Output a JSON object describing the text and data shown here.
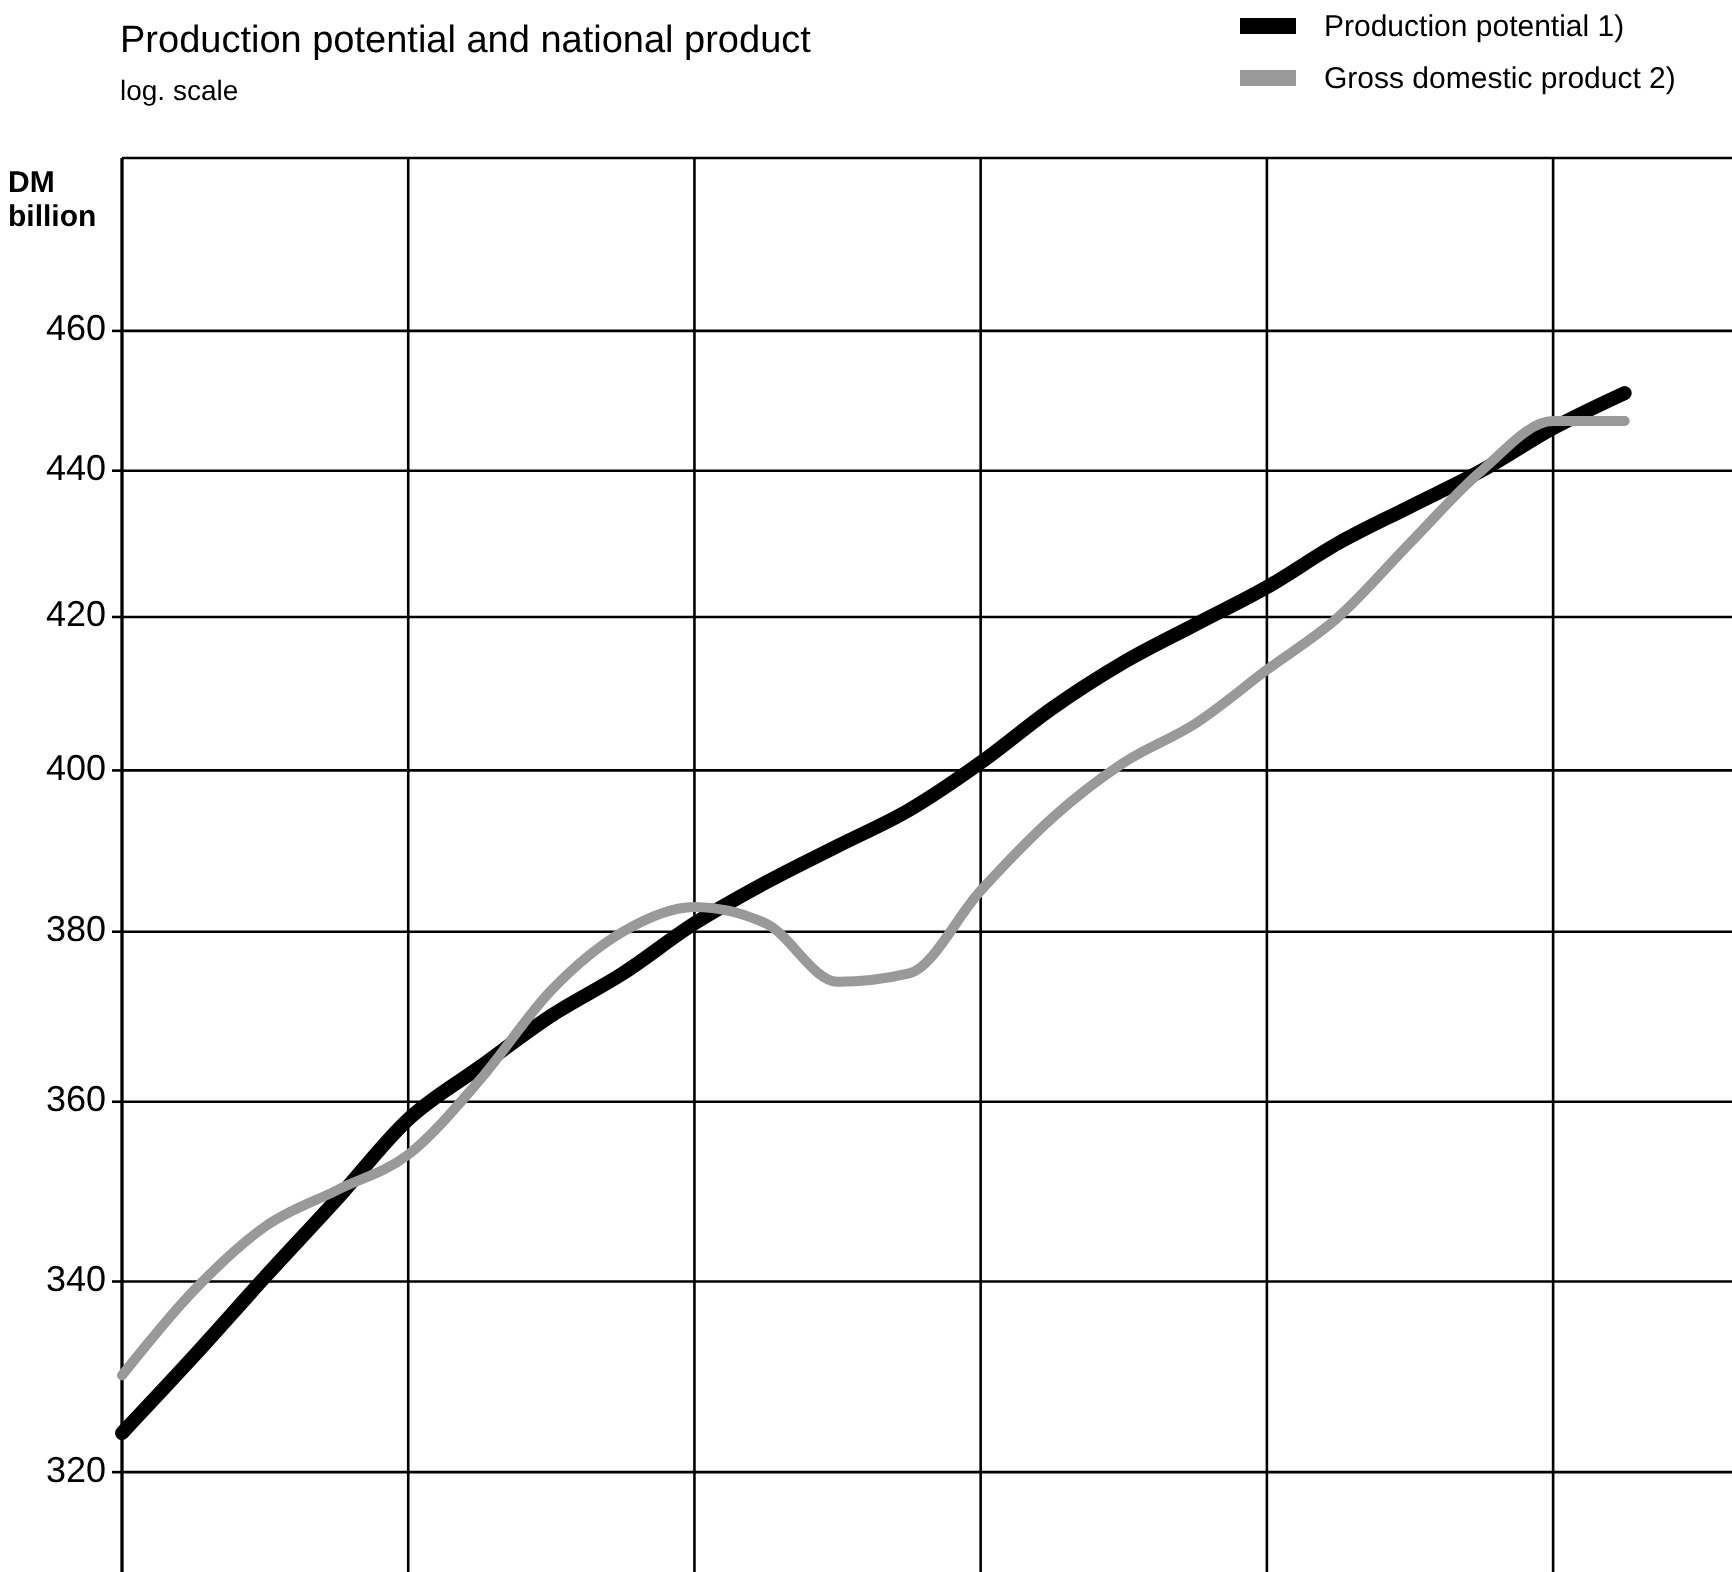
{
  "chart_data": {
    "type": "line",
    "title": "Production potential and national product",
    "subtitle": "log. scale",
    "ylabel": "DM billion",
    "log": true,
    "grid": true,
    "legend": "top right",
    "tick_labels": "y",
    "marker": "none",
    "line_style": "solid",
    "categories": [
      null,
      null,
      null,
      null,
      null,
      null,
      null,
      null,
      null,
      null,
      null,
      null,
      null,
      null,
      null,
      null,
      null,
      null,
      null,
      null,
      null,
      null
    ],
    "ylim": [
      310,
      486
    ],
    "yticks": [
      320,
      340,
      360,
      380,
      400,
      420,
      440,
      460
    ],
    "series": [
      {
        "name": "Production potential 1)",
        "color": "#000000",
        "values": [
          324,
          332,
          340.5,
          349,
          358,
          364,
          370,
          375,
          381,
          386,
          390.5,
          395,
          401,
          408,
          414,
          419,
          424,
          430,
          435,
          440,
          446,
          451
        ]
      },
      {
        "name": "Gross domestic product 2)",
        "color": "#999999",
        "values": [
          330,
          339,
          346,
          350,
          354,
          362.5,
          373,
          380,
          383,
          381,
          374,
          375,
          385,
          394,
          401,
          406,
          413,
          420,
          430,
          440,
          447,
          447
        ]
      }
    ]
  }
}
